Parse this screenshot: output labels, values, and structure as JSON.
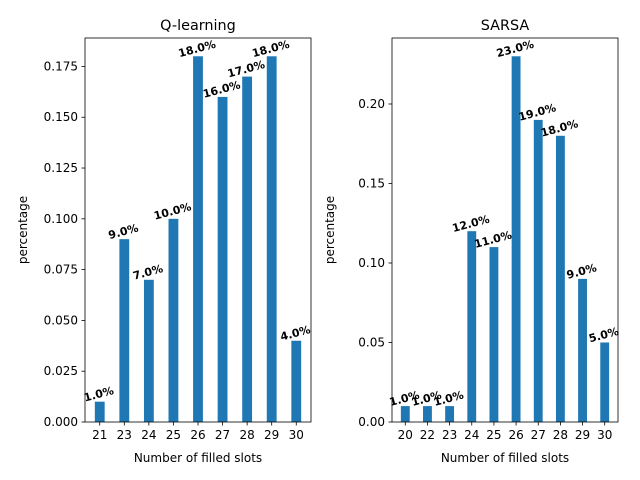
{
  "chart_data": [
    {
      "type": "bar",
      "title": "Q-learning",
      "xlabel": "Number of filled slots",
      "ylabel": "percentage",
      "categories": [
        "21",
        "23",
        "24",
        "25",
        "26",
        "27",
        "28",
        "29",
        "30"
      ],
      "values": [
        0.01,
        0.09,
        0.07,
        0.1,
        0.18,
        0.16,
        0.17,
        0.18,
        0.04
      ],
      "data_labels": [
        "1.0%",
        "9.0%",
        "7.0%",
        "10.0%",
        "18.0%",
        "16.0%",
        "17.0%",
        "18.0%",
        "4.0%"
      ],
      "ylim": [
        0,
        0.189
      ],
      "yticks": [
        0.0,
        0.025,
        0.05,
        0.075,
        0.1,
        0.125,
        0.15,
        0.175
      ],
      "ytick_labels": [
        "0.000",
        "0.025",
        "0.050",
        "0.075",
        "0.100",
        "0.125",
        "0.150",
        "0.175"
      ],
      "bar_color": "#1f77b4",
      "grid": false
    },
    {
      "type": "bar",
      "title": "SARSA",
      "xlabel": "Number of filled slots",
      "ylabel": "percentage",
      "categories": [
        "20",
        "22",
        "23",
        "24",
        "25",
        "26",
        "27",
        "28",
        "29",
        "30"
      ],
      "values": [
        0.01,
        0.01,
        0.01,
        0.12,
        0.11,
        0.23,
        0.19,
        0.18,
        0.09,
        0.05
      ],
      "data_labels": [
        "1.0%",
        "1.0%",
        "1.0%",
        "12.0%",
        "11.0%",
        "23.0%",
        "19.0%",
        "18.0%",
        "9.0%",
        "5.0%"
      ],
      "ylim": [
        0,
        0.2415
      ],
      "yticks": [
        0.0,
        0.05,
        0.1,
        0.15,
        0.2
      ],
      "ytick_labels": [
        "0.00",
        "0.05",
        "0.10",
        "0.15",
        "0.20"
      ],
      "bar_color": "#1f77b4",
      "grid": false
    }
  ]
}
